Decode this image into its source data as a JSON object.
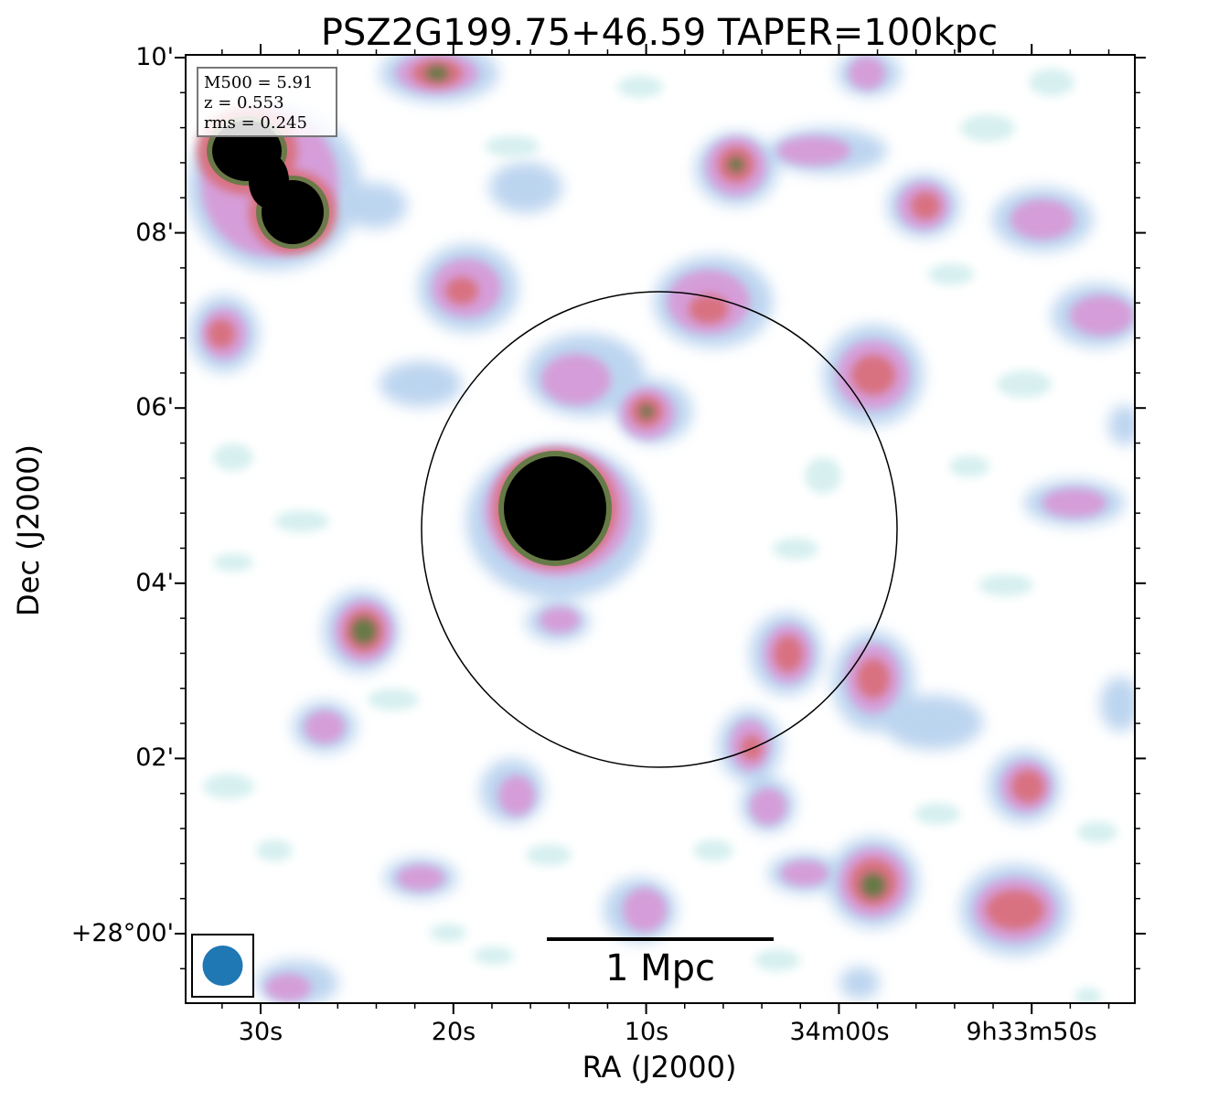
{
  "title": "PSZ2G199.75+46.59 TAPER=100kpc",
  "info_box": {
    "mass_line": "M500 = 5.91",
    "redshift_line": "z = 0.553",
    "rms_line": "rms = 0.245"
  },
  "scale_bar_label": "1 Mpc",
  "axes": {
    "xlabel": "RA (J2000)",
    "ylabel": "Dec (J2000)",
    "x_tick_labels": [
      "30s",
      "20s",
      "10s",
      "34m00s",
      "9h33m50s"
    ],
    "y_tick_labels": [
      "10'",
      "08'",
      "06'",
      "04'",
      "02'",
      "+28°00'"
    ]
  },
  "colors": {
    "low_emission": "#b9d3ef",
    "faint_cyan": "#d3eeee",
    "mid_emission": "#d79bd8",
    "bright_emission": "#d9707d",
    "peak_core": "#5f7a42",
    "saturated": "#000000",
    "beam_fill": "#1f77b4",
    "circle_stroke": "#000000",
    "axis_color": "#000000"
  }
}
